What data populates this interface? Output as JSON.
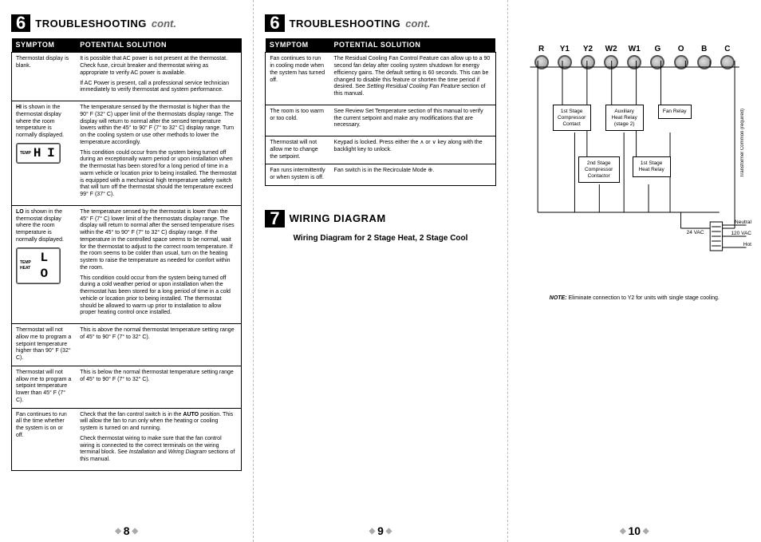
{
  "section6": {
    "badge": "6",
    "title": "TROUBLESHOOTING",
    "cont": "cont."
  },
  "section7": {
    "badge": "7",
    "title": "WIRING DIAGRAM"
  },
  "table_headers": {
    "symptom": "SYMPTOM",
    "solution": "POTENTIAL SOLUTION"
  },
  "page_left": {
    "rows": [
      {
        "symptom": "Thermostat display is blank.",
        "solutions": [
          "It is possible that AC power is not present at the thermostat. Check fuse, circuit breaker and thermostat wiring as appropriate to verify AC power is available.",
          "If AC Power is present, call a professional service technician immediately to verify thermostat and system performance."
        ]
      },
      {
        "symptom_html": "<b>HI</b> is shown in the thermostat display where the room temperature is normally displayed.",
        "display": {
          "label": "TEMP",
          "seg": "H I"
        },
        "solutions": [
          "The temperature sensed by the thermostat is higher than the 90° F (32° C) upper limit of the thermostats display range. The display will return to normal after the sensed temperature lowers within the 45° to 90° F (7° to 32° C) display range. Turn on the cooling system or use other methods to lower the temperature accordingly.",
          "This condition could occur from the system being turned off during an exceptionally warm period or upon installation when the thermostat has been stored for a long period of time in a warm vehicle or location prior to being installed. The thermostat is equipped with a mechanical high temperature safety switch that will turn off the thermostat should the temperature exceed 99° F (37° C)."
        ]
      },
      {
        "symptom_html": "<b>LO</b> is shown in the thermostat display where the room temperature is normally displayed.",
        "display": {
          "label": "TEMP HEAT",
          "seg": "L O"
        },
        "solutions": [
          "The temperature sensed by the thermostat is lower than the 45° F (7° C) lower limit of the thermostats display range. The display will return to normal after the sensed temperature rises within the 45° to 90° F (7° to 32° C) display range. If the temperature in the controlled space seems to be normal, wait for the thermostat to adjust to the correct room temperature. If the room seems to be colder than usual, turn on the heating system to raise the temperature as needed for comfort within the room.",
          "This condition could occur from the system being turned off during a cold weather period or upon installation when the thermostat has been stored for a long period of time in a cold vehicle or location prior to being installed. The thermostat should be allowed to warm up prior to installation to allow proper heating control once installed."
        ]
      },
      {
        "symptom": "Thermostat will not allow me to program a setpoint temperature higher than 90° F (32° C).",
        "solutions": [
          "This is above the normal thermostat temperature setting range of 45° to 90° F (7° to 32° C)."
        ]
      },
      {
        "symptom": "Thermostat will not allow me to program a setpoint temperature lower than 45° F (7° C).",
        "solutions": [
          "This is below the normal thermostat temperature setting range of 45° to 90° F (7° to 32° C)."
        ]
      },
      {
        "symptom": "Fan continues to run all the time whether the system is on or off.",
        "solutions": [
          "Check that the fan control switch is in the <b>AUTO</b> position. This will allow the fan to run only when the heating or cooling system is turned on and running.",
          "Check thermostat wiring to make sure that the fan control wiring is connected to the correct terminals on the wiring terminal block. See <i>Installation</i> and <i>Wiring Diagram</i> sections of this manual."
        ]
      }
    ],
    "pagenum": "8"
  },
  "page_mid": {
    "rows": [
      {
        "symptom": "Fan continues to run in cooling mode when the system has turned off.",
        "solutions": [
          "The Residual Cooling Fan Control Feature can allow up to a 90 second fan delay after cooling system shutdown for energy efficiency gains. The default setting is 60 seconds. This can be changed to disable this feature or shorten the time period if desired. See <i>Setting Residual Cooling Fan Feature</i> section of this manual."
        ]
      },
      {
        "symptom": "The room is too warm or too cold.",
        "solutions": [
          "See Review Set Temperature section of this manual to verify the current setpoint and make any modifications that are necessary."
        ]
      },
      {
        "symptom": "Thermostat will not allow me to change the setpoint.",
        "solutions": [
          "Keypad is locked. Press either the ∧ or ∨ key along with the backlight key to unlock."
        ]
      },
      {
        "symptom": "Fan runs intermittently or when system is off.",
        "solutions": [
          "Fan switch is in the Recirculate Mode ⊕."
        ]
      }
    ],
    "pagenum": "9"
  },
  "wiring": {
    "title": "Wiring Diagram for 2 Stage Heat, 2 Stage Cool",
    "terminals": [
      "R",
      "Y1",
      "Y2",
      "W2",
      "W1",
      "G",
      "O",
      "B",
      "C"
    ],
    "components": {
      "comp1": "1st Stage Compressor Contact",
      "aux": "Auxiliary Heat Relay (stage 2)",
      "fan": "Fan Relay",
      "comp2": "2nd Stage Compressor Contactor",
      "heat1": "1st Stage Heat Relay"
    },
    "labels": {
      "xfmr": "Transformer Common (required)",
      "vac24": "24 VAC",
      "neutral": "Neutral",
      "vac120": "120 VAC",
      "hot": "Hot"
    },
    "colors": {
      "wire": "#000000",
      "screw_fill": "#b0b0b0",
      "screw_border": "#555555"
    },
    "note_label": "NOTE:",
    "note_text": "Eliminate connection to Y2 for units with single stage cooling."
  },
  "page_right_num": "10"
}
